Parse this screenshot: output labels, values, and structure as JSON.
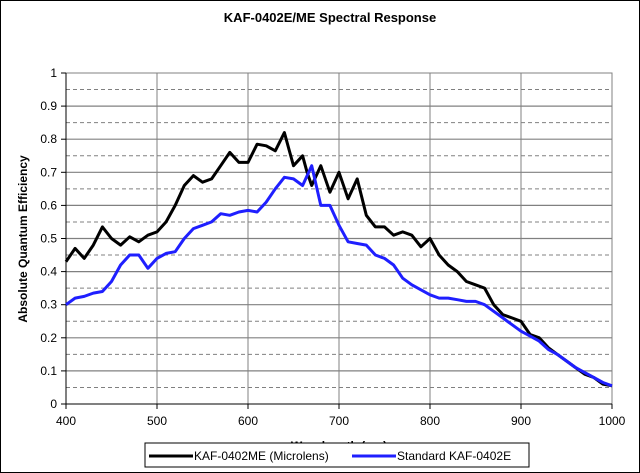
{
  "chart_data": {
    "type": "line",
    "title": "KAF-0402E/ME Spectral Response",
    "xlabel": "Wavelength (nm)",
    "ylabel": "Absolute Quantum Efficiency",
    "xlim": [
      400,
      1000
    ],
    "ylim": [
      0,
      1
    ],
    "xticks": [
      "400",
      "500",
      "600",
      "700",
      "800",
      "900",
      "1000"
    ],
    "xtick_values": [
      400,
      500,
      600,
      700,
      800,
      900,
      1000
    ],
    "yticks": [
      "0",
      "0.1",
      "0.2",
      "0.3",
      "0.4",
      "0.5",
      "0.6",
      "0.7",
      "0.8",
      "0.9",
      "1"
    ],
    "ytick_values": [
      0,
      0.1,
      0.2,
      0.3,
      0.4,
      0.5,
      0.6,
      0.7,
      0.8,
      0.9,
      1
    ],
    "grid": true,
    "legend_position": "bottom",
    "series": [
      {
        "name": "KAF-0402ME (Microlens)",
        "color": "#000000",
        "x": [
          400,
          410,
          420,
          430,
          440,
          450,
          460,
          470,
          480,
          490,
          500,
          510,
          520,
          530,
          540,
          550,
          560,
          570,
          580,
          590,
          600,
          610,
          620,
          630,
          640,
          645,
          650,
          660,
          665,
          670,
          680,
          690,
          700,
          710,
          720,
          730,
          740,
          750,
          760,
          770,
          780,
          790,
          800,
          810,
          820,
          830,
          840,
          850,
          860,
          870,
          880,
          890,
          900,
          910,
          920,
          930,
          940,
          950,
          960,
          970,
          980,
          990,
          1000
        ],
        "y": [
          0.43,
          0.47,
          0.44,
          0.48,
          0.535,
          0.5,
          0.48,
          0.505,
          0.49,
          0.51,
          0.52,
          0.55,
          0.6,
          0.66,
          0.69,
          0.67,
          0.68,
          0.72,
          0.76,
          0.73,
          0.73,
          0.785,
          0.78,
          0.765,
          0.82,
          0.77,
          0.72,
          0.75,
          0.7,
          0.66,
          0.72,
          0.64,
          0.7,
          0.62,
          0.68,
          0.57,
          0.535,
          0.535,
          0.51,
          0.52,
          0.51,
          0.475,
          0.5,
          0.45,
          0.42,
          0.4,
          0.37,
          0.36,
          0.35,
          0.3,
          0.27,
          0.26,
          0.25,
          0.21,
          0.2,
          0.17,
          0.15,
          0.13,
          0.11,
          0.09,
          0.08,
          0.06,
          0.055
        ]
      },
      {
        "name": "Standard KAF-0402E",
        "color": "#1f1fff",
        "x": [
          400,
          410,
          420,
          430,
          440,
          450,
          460,
          470,
          480,
          490,
          500,
          510,
          520,
          530,
          540,
          550,
          560,
          570,
          580,
          590,
          600,
          610,
          620,
          630,
          640,
          650,
          660,
          670,
          680,
          690,
          700,
          710,
          720,
          730,
          740,
          750,
          760,
          770,
          780,
          790,
          800,
          810,
          820,
          830,
          840,
          850,
          860,
          870,
          880,
          890,
          900,
          910,
          920,
          930,
          940,
          950,
          960,
          970,
          980,
          990,
          1000
        ],
        "y": [
          0.3,
          0.32,
          0.325,
          0.335,
          0.34,
          0.37,
          0.42,
          0.45,
          0.45,
          0.41,
          0.44,
          0.455,
          0.46,
          0.5,
          0.53,
          0.54,
          0.55,
          0.575,
          0.57,
          0.58,
          0.585,
          0.58,
          0.61,
          0.65,
          0.685,
          0.68,
          0.66,
          0.72,
          0.6,
          0.6,
          0.54,
          0.49,
          0.485,
          0.48,
          0.45,
          0.44,
          0.42,
          0.38,
          0.36,
          0.345,
          0.33,
          0.32,
          0.32,
          0.315,
          0.31,
          0.31,
          0.3,
          0.28,
          0.26,
          0.24,
          0.22,
          0.205,
          0.19,
          0.165,
          0.15,
          0.13,
          0.11,
          0.095,
          0.08,
          0.065,
          0.055
        ]
      }
    ]
  }
}
